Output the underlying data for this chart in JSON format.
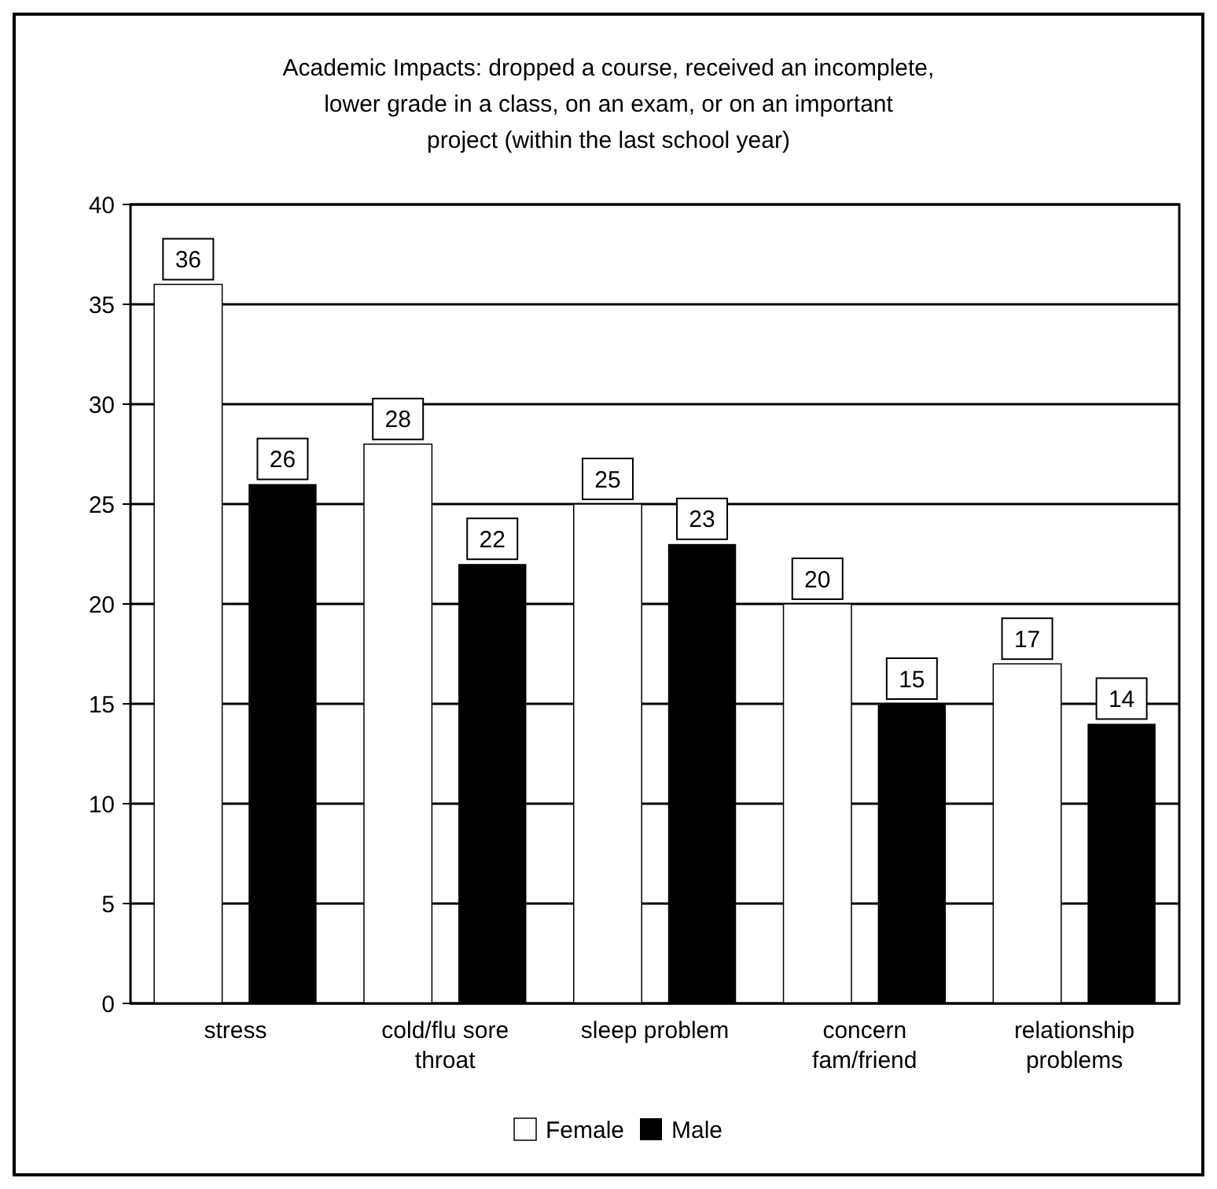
{
  "chart_data": {
    "type": "bar",
    "title": "Academic Impacts: dropped a course, received an incomplete, lower grade in a class, on an exam, or on an important project (within the last school year)",
    "categories": [
      "stress",
      "cold/flu sore throat",
      "sleep problem",
      "concern fam/friend",
      "relationship problems"
    ],
    "series": [
      {
        "name": "Female",
        "color": "#ffffff",
        "values": [
          36,
          28,
          25,
          20,
          17
        ]
      },
      {
        "name": "Male",
        "color": "#000000",
        "values": [
          26,
          22,
          23,
          15,
          14
        ]
      }
    ],
    "ylim": [
      0,
      40
    ],
    "yticks": [
      0,
      5,
      10,
      15,
      20,
      25,
      30,
      35,
      40
    ],
    "grid": "y",
    "legend": "bottom",
    "data_labels": true
  }
}
